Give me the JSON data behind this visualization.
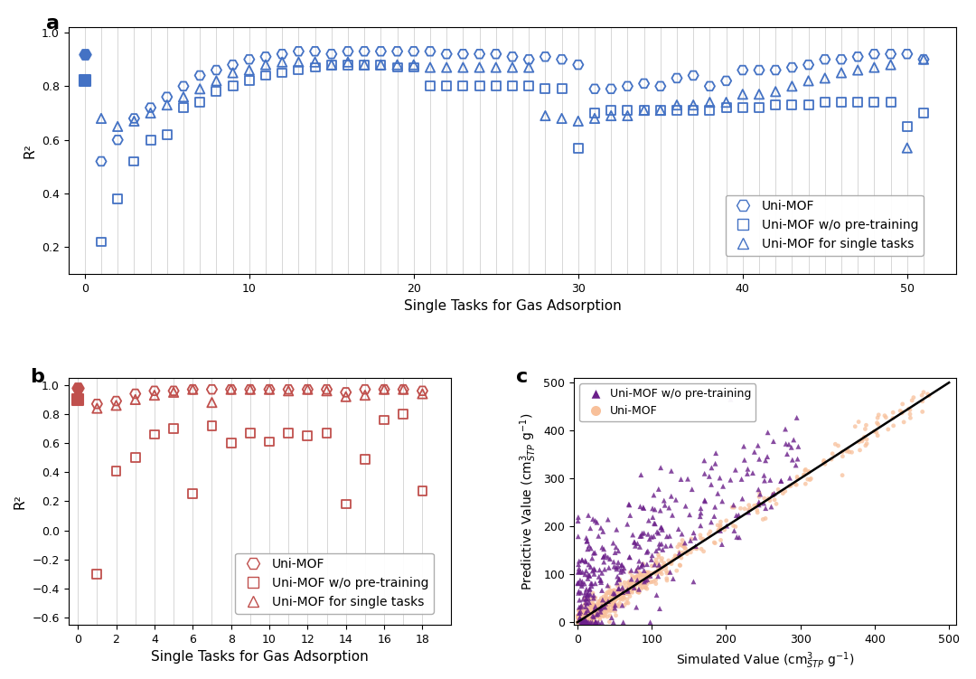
{
  "panel_a": {
    "title": "a",
    "xlabel": "Single Tasks for Gas Adsorption",
    "ylabel": "R²",
    "ylim": [
      0.1,
      1.02
    ],
    "xlim": [
      -1,
      53
    ],
    "color": "#4472C4",
    "uni_mof_x": [
      0,
      1,
      2,
      3,
      4,
      5,
      6,
      7,
      8,
      9,
      10,
      11,
      12,
      13,
      14,
      15,
      16,
      17,
      18,
      19,
      20,
      21,
      22,
      23,
      24,
      25,
      26,
      27,
      28,
      29,
      30,
      31,
      32,
      33,
      34,
      35,
      36,
      37,
      38,
      39,
      40,
      41,
      42,
      43,
      44,
      45,
      46,
      47,
      48,
      49,
      50,
      51
    ],
    "uni_mof_y": [
      0.92,
      0.52,
      0.6,
      0.68,
      0.72,
      0.76,
      0.8,
      0.84,
      0.86,
      0.88,
      0.9,
      0.91,
      0.92,
      0.93,
      0.93,
      0.92,
      0.93,
      0.93,
      0.93,
      0.93,
      0.93,
      0.93,
      0.92,
      0.92,
      0.92,
      0.92,
      0.91,
      0.9,
      0.91,
      0.9,
      0.88,
      0.79,
      0.79,
      0.8,
      0.81,
      0.8,
      0.83,
      0.84,
      0.8,
      0.82,
      0.86,
      0.86,
      0.86,
      0.87,
      0.88,
      0.9,
      0.9,
      0.91,
      0.92,
      0.92,
      0.92,
      0.9
    ],
    "no_pretrain_x": [
      0,
      1,
      2,
      3,
      4,
      5,
      6,
      7,
      8,
      9,
      10,
      11,
      12,
      13,
      14,
      15,
      16,
      17,
      18,
      19,
      20,
      21,
      22,
      23,
      24,
      25,
      26,
      27,
      28,
      29,
      30,
      31,
      32,
      33,
      34,
      35,
      36,
      37,
      38,
      39,
      40,
      41,
      42,
      43,
      44,
      45,
      46,
      47,
      48,
      49,
      50,
      51
    ],
    "no_pretrain_y": [
      0.82,
      0.22,
      0.38,
      0.52,
      0.6,
      0.62,
      0.72,
      0.74,
      0.78,
      0.8,
      0.82,
      0.84,
      0.85,
      0.86,
      0.87,
      0.88,
      0.88,
      0.88,
      0.88,
      0.87,
      0.87,
      0.8,
      0.8,
      0.8,
      0.8,
      0.8,
      0.8,
      0.8,
      0.79,
      0.79,
      0.57,
      0.7,
      0.71,
      0.71,
      0.71,
      0.71,
      0.71,
      0.71,
      0.71,
      0.72,
      0.72,
      0.72,
      0.73,
      0.73,
      0.73,
      0.74,
      0.74,
      0.74,
      0.74,
      0.74,
      0.65,
      0.7
    ],
    "single_x": [
      1,
      2,
      3,
      4,
      5,
      6,
      7,
      8,
      9,
      10,
      11,
      12,
      13,
      14,
      15,
      16,
      17,
      18,
      19,
      20,
      21,
      22,
      23,
      24,
      25,
      26,
      27,
      28,
      29,
      30,
      31,
      32,
      33,
      34,
      35,
      36,
      37,
      38,
      39,
      40,
      41,
      42,
      43,
      44,
      45,
      46,
      47,
      48,
      49,
      50,
      51
    ],
    "single_y": [
      0.68,
      0.65,
      0.67,
      0.7,
      0.73,
      0.76,
      0.79,
      0.82,
      0.85,
      0.86,
      0.88,
      0.89,
      0.89,
      0.89,
      0.88,
      0.89,
      0.88,
      0.88,
      0.88,
      0.88,
      0.87,
      0.87,
      0.87,
      0.87,
      0.87,
      0.87,
      0.87,
      0.69,
      0.68,
      0.67,
      0.68,
      0.69,
      0.69,
      0.71,
      0.71,
      0.73,
      0.73,
      0.74,
      0.74,
      0.77,
      0.77,
      0.78,
      0.8,
      0.82,
      0.83,
      0.85,
      0.86,
      0.87,
      0.88,
      0.57,
      0.9
    ]
  },
  "panel_b": {
    "title": "b",
    "xlabel": "Single Tasks for Gas Adsorption",
    "ylabel": "R²",
    "ylim": [
      -0.65,
      1.05
    ],
    "xlim": [
      -0.5,
      19.5
    ],
    "color": "#C0504D",
    "uni_mof_x": [
      0,
      1,
      2,
      3,
      4,
      5,
      6,
      7,
      8,
      9,
      10,
      11,
      12,
      13,
      14,
      15,
      16,
      17,
      18
    ],
    "uni_mof_y": [
      0.98,
      0.87,
      0.89,
      0.94,
      0.96,
      0.96,
      0.97,
      0.97,
      0.97,
      0.97,
      0.97,
      0.97,
      0.97,
      0.97,
      0.95,
      0.97,
      0.97,
      0.97,
      0.96
    ],
    "no_pretrain_x": [
      0,
      1,
      2,
      3,
      4,
      5,
      6,
      7,
      8,
      9,
      10,
      11,
      12,
      13,
      14,
      15,
      16,
      17,
      18
    ],
    "no_pretrain_y": [
      0.9,
      -0.3,
      0.41,
      0.5,
      0.66,
      0.7,
      0.25,
      0.72,
      0.6,
      0.67,
      0.61,
      0.67,
      0.65,
      0.67,
      0.18,
      0.49,
      0.76,
      0.8,
      0.27
    ],
    "single_x": [
      1,
      2,
      3,
      4,
      5,
      6,
      7,
      8,
      9,
      10,
      11,
      12,
      13,
      14,
      15,
      16,
      17,
      18
    ],
    "single_y": [
      0.84,
      0.86,
      0.9,
      0.93,
      0.95,
      0.97,
      0.88,
      0.97,
      0.97,
      0.97,
      0.96,
      0.97,
      0.96,
      0.92,
      0.93,
      0.97,
      0.97,
      0.94
    ]
  },
  "panel_c": {
    "title": "c",
    "xlabel": "Simulated Value (cm$^3_{STP}$ g$^{-1}$)",
    "ylabel": "Predictive Value (cm$^3_{STP}$ g$^{-1}$)",
    "xlim": [
      -5,
      510
    ],
    "ylim": [
      -5,
      510
    ],
    "n_orange": 600,
    "n_purple": 350
  },
  "blue_color": "#4472C4",
  "red_color": "#C0504D",
  "purple_color": "#6B1F8A",
  "orange_color": "#F8C09A",
  "bg_color": "#F5F5F5"
}
